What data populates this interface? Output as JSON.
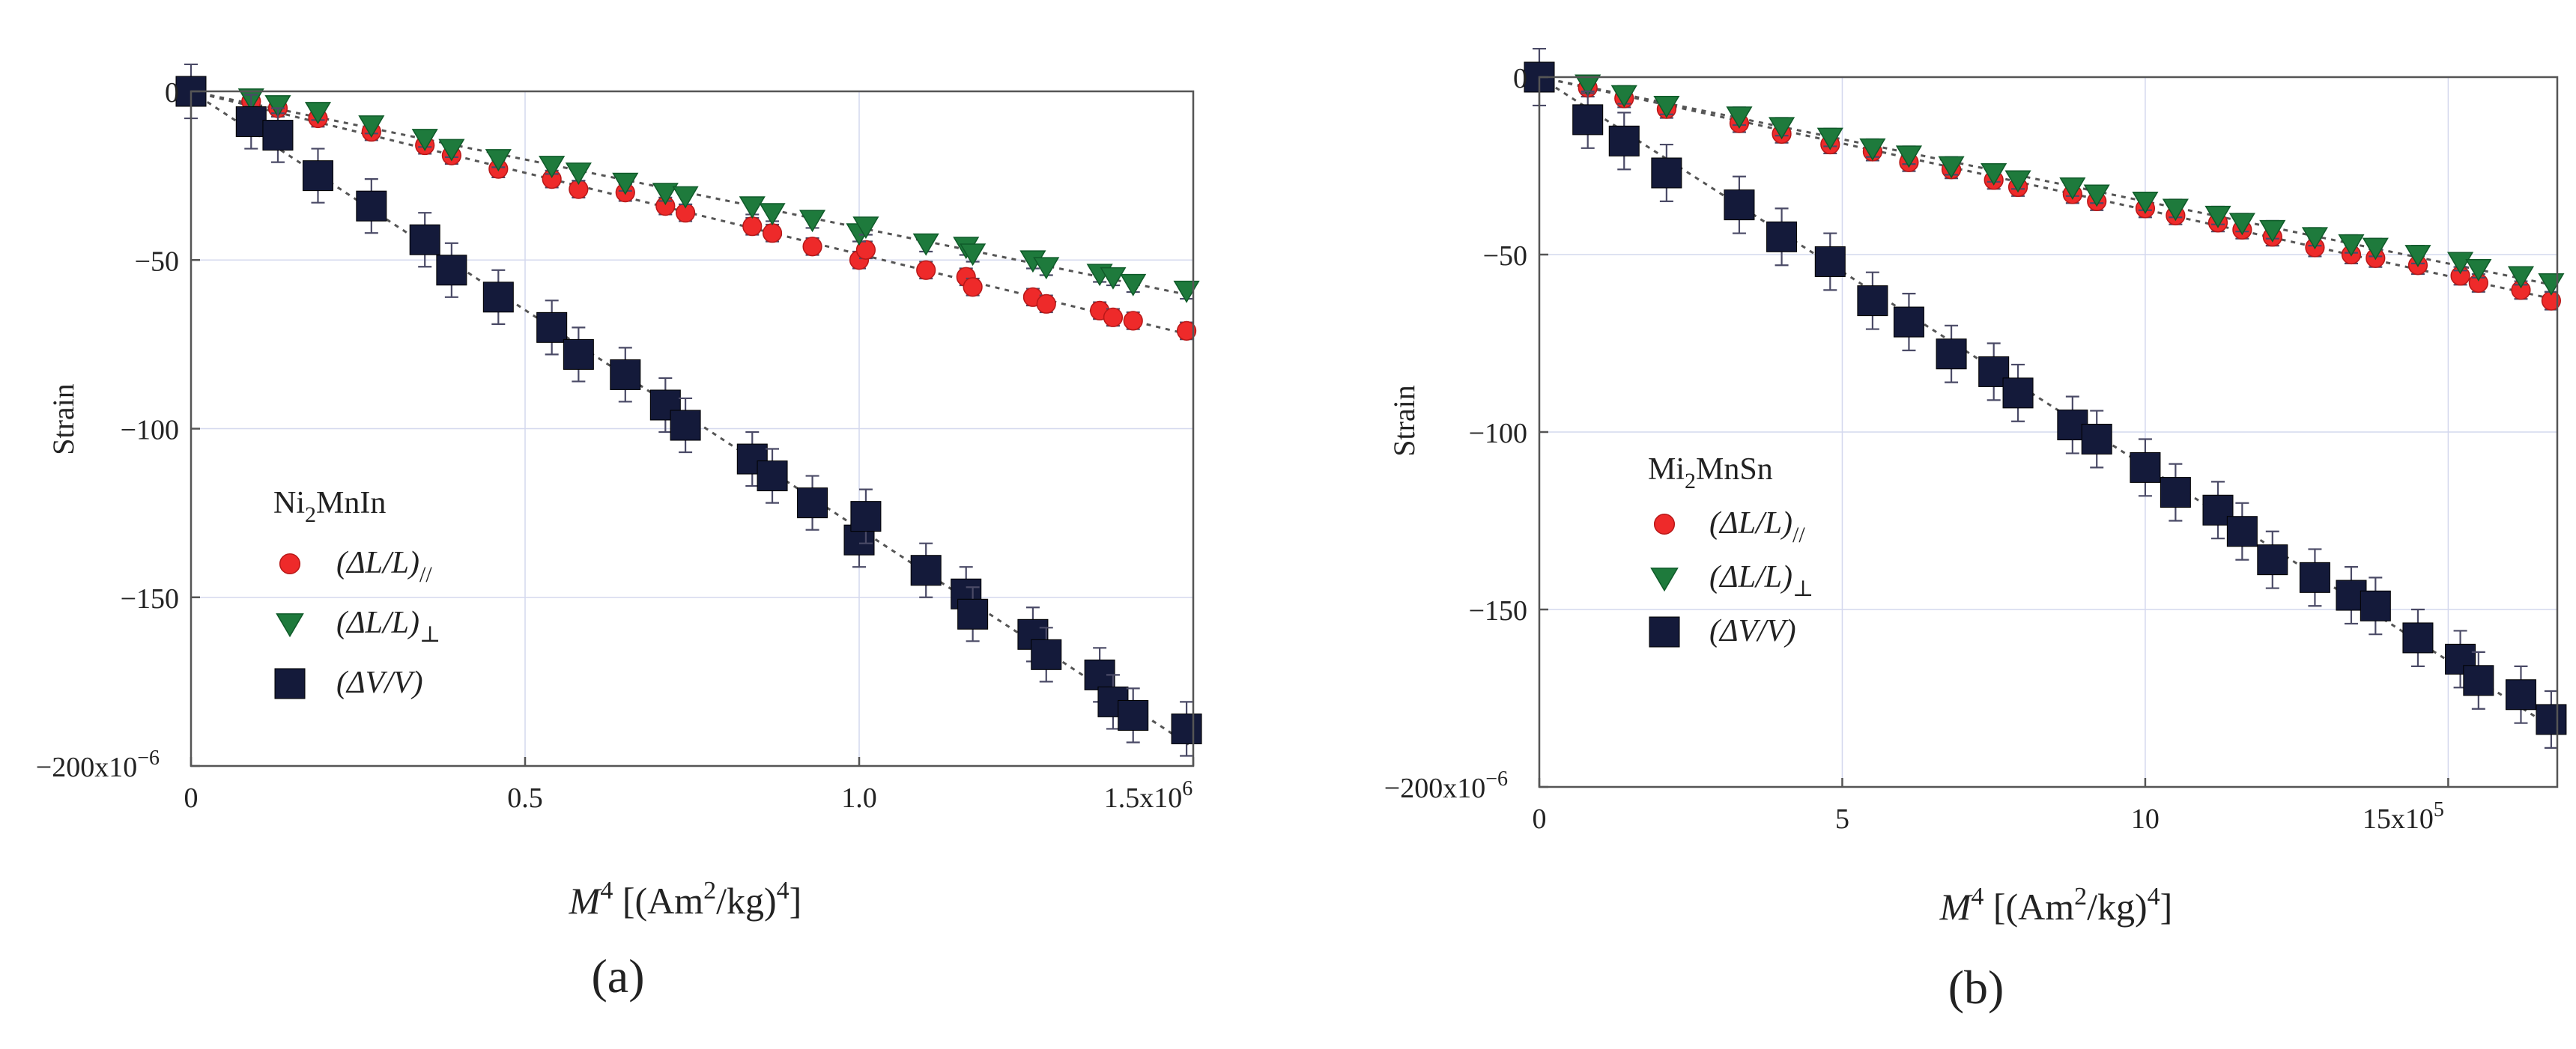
{
  "panels": [
    {
      "id": "a",
      "label": "(a)",
      "chart_data": {
        "type": "scatter",
        "xlabel": {
          "main": "M",
          "sup": "4",
          "rest": " [(Am",
          "sup2": "2",
          "rest2": "/kg)",
          "sup3": "4",
          "end": "]"
        },
        "ylabel": "Strain",
        "x_ticks": [
          {
            "v": 0,
            "label": "0"
          },
          {
            "v": 0.5,
            "label": "0.5"
          },
          {
            "v": 1.0,
            "label": "1.0"
          },
          {
            "v": 1.5,
            "label": "1.5x10",
            "sup": "6"
          }
        ],
        "y_ticks": [
          {
            "v": 0,
            "label": "0"
          },
          {
            "v": -50,
            "label": "−50"
          },
          {
            "v": -100,
            "label": "−100"
          },
          {
            "v": -150,
            "label": "−150"
          },
          {
            "v": -200,
            "label": "−200x10",
            "sup": "−6"
          }
        ],
        "xlim": [
          0,
          1.5
        ],
        "ylim": [
          -200,
          0
        ],
        "grid": true,
        "legend_title": {
          "main": "Ni",
          "sub": "2",
          "rest": "MnIn"
        },
        "series": [
          {
            "name": "(ΔL/L)//",
            "legend": {
              "main": "(ΔL/L)",
              "sub": "//"
            },
            "marker": "circle",
            "color": "#ee2a2a",
            "err": 2.5,
            "x": [
              0.09,
              0.13,
              0.19,
              0.27,
              0.35,
              0.39,
              0.46,
              0.54,
              0.58,
              0.65,
              0.71,
              0.74,
              0.84,
              0.87,
              0.93,
              1.0,
              1.01,
              1.1,
              1.16,
              1.17,
              1.26,
              1.28,
              1.36,
              1.38,
              1.41,
              1.49
            ],
            "y": [
              -3,
              -5,
              -8,
              -12,
              -16,
              -19,
              -23,
              -26,
              -29,
              -30,
              -34,
              -36,
              -40,
              -42,
              -46,
              -50,
              -47,
              -53,
              -55,
              -58,
              -61,
              -63,
              -65,
              -67,
              -68,
              -71
            ]
          },
          {
            "name": "(ΔL/L)⊥",
            "legend": {
              "main": "(ΔL/L)",
              "sub": "⊥"
            },
            "marker": "triangle-down",
            "color": "#1e7a3c",
            "err": 2.5,
            "x": [
              0.09,
              0.13,
              0.19,
              0.27,
              0.35,
              0.39,
              0.46,
              0.54,
              0.58,
              0.65,
              0.71,
              0.74,
              0.84,
              0.87,
              0.93,
              1.0,
              1.01,
              1.1,
              1.16,
              1.17,
              1.26,
              1.28,
              1.36,
              1.38,
              1.41,
              1.49
            ],
            "y": [
              -2,
              -4,
              -6,
              -10,
              -14,
              -17,
              -20,
              -22,
              -24,
              -27,
              -30,
              -31,
              -34,
              -36,
              -38,
              -42,
              -40,
              -45,
              -46,
              -48,
              -50,
              -52,
              -54,
              -55,
              -57,
              -59
            ]
          },
          {
            "name": "(ΔV/V)",
            "legend": {
              "main": "(ΔV/V)",
              "sub": ""
            },
            "marker": "square",
            "color": "#141a3a",
            "err": 8,
            "x": [
              0.09,
              0.13,
              0.19,
              0.27,
              0.35,
              0.39,
              0.46,
              0.54,
              0.58,
              0.65,
              0.71,
              0.74,
              0.84,
              0.87,
              0.93,
              1.0,
              1.01,
              1.1,
              1.16,
              1.17,
              1.26,
              1.28,
              1.36,
              1.38,
              1.41,
              1.49
            ],
            "y": [
              -9,
              -13,
              -25,
              -34,
              -44,
              -53,
              -61,
              -70,
              -78,
              -84,
              -93,
              -99,
              -109,
              -114,
              -122,
              -133,
              -126,
              -142,
              -149,
              -155,
              -161,
              -167,
              -173,
              -181,
              -185,
              -189
            ]
          }
        ]
      }
    },
    {
      "id": "b",
      "label": "(b)",
      "chart_data": {
        "type": "scatter",
        "xlabel": {
          "main": "M",
          "sup": "4",
          "rest": " [(Am",
          "sup2": "2",
          "rest2": "/kg)",
          "sup3": "4",
          "end": "]"
        },
        "ylabel": "Strain",
        "x_ticks": [
          {
            "v": 0,
            "label": "0"
          },
          {
            "v": 5,
            "label": "5"
          },
          {
            "v": 10,
            "label": "10"
          },
          {
            "v": 15,
            "label": "15x10",
            "sup": "5"
          }
        ],
        "y_ticks": [
          {
            "v": 0,
            "label": "0"
          },
          {
            "v": -50,
            "label": "−50"
          },
          {
            "v": -100,
            "label": "−100"
          },
          {
            "v": -150,
            "label": "−150"
          },
          {
            "v": -200,
            "label": "−200x10",
            "sup": "−6"
          }
        ],
        "xlim": [
          0,
          16.8
        ],
        "ylim": [
          -200,
          0
        ],
        "grid": true,
        "legend_title": {
          "main": "Mi",
          "sub": "2",
          "rest": "MnSn"
        },
        "series": [
          {
            "name": "(ΔL/L)//",
            "legend": {
              "main": "(ΔL/L)",
              "sub": "//"
            },
            "marker": "circle",
            "color": "#ee2a2a",
            "err": 2.5,
            "x": [
              0.8,
              1.4,
              2.1,
              3.3,
              4.0,
              4.8,
              5.5,
              6.1,
              6.8,
              7.5,
              7.9,
              8.8,
              9.2,
              10.0,
              10.5,
              11.2,
              11.6,
              12.1,
              12.8,
              13.4,
              13.8,
              14.5,
              15.2,
              15.5,
              16.2,
              16.7
            ],
            "y": [
              -3,
              -6,
              -9,
              -13,
              -16,
              -19,
              -21,
              -24,
              -26,
              -29,
              -31,
              -33,
              -35,
              -37,
              -39,
              -41,
              -43,
              -45,
              -48,
              -50,
              -51,
              -53,
              -56,
              -58,
              -60,
              -63
            ]
          },
          {
            "name": "(ΔL/L)⊥",
            "legend": {
              "main": "(ΔL/L)",
              "sub": "⊥"
            },
            "marker": "triangle-down",
            "color": "#1e7a3c",
            "err": 2.5,
            "x": [
              0.8,
              1.4,
              2.1,
              3.3,
              4.0,
              4.8,
              5.5,
              6.1,
              6.8,
              7.5,
              7.9,
              8.8,
              9.2,
              10.0,
              10.5,
              11.2,
              11.6,
              12.1,
              12.8,
              13.4,
              13.8,
              14.5,
              15.2,
              15.5,
              16.2,
              16.7
            ],
            "y": [
              -2,
              -5,
              -8,
              -11,
              -14,
              -17,
              -20,
              -22,
              -25,
              -27,
              -29,
              -31,
              -33,
              -35,
              -37,
              -39,
              -41,
              -43,
              -45,
              -47,
              -48,
              -50,
              -52,
              -54,
              -56,
              -58
            ]
          },
          {
            "name": "(ΔV/V)",
            "legend": {
              "main": "(ΔV/V)",
              "sub": ""
            },
            "marker": "square",
            "color": "#141a3a",
            "err": 8,
            "x": [
              0.8,
              1.4,
              2.1,
              3.3,
              4.0,
              4.8,
              5.5,
              6.1,
              6.8,
              7.5,
              7.9,
              8.8,
              9.2,
              10.0,
              10.5,
              11.2,
              11.6,
              12.1,
              12.8,
              13.4,
              13.8,
              14.5,
              15.2,
              15.5,
              16.2,
              16.7
            ],
            "y": [
              -12,
              -18,
              -27,
              -36,
              -45,
              -52,
              -63,
              -69,
              -78,
              -83,
              -89,
              -98,
              -102,
              -110,
              -117,
              -122,
              -128,
              -136,
              -141,
              -146,
              -149,
              -158,
              -164,
              -170,
              -174,
              -181
            ]
          }
        ]
      }
    }
  ]
}
